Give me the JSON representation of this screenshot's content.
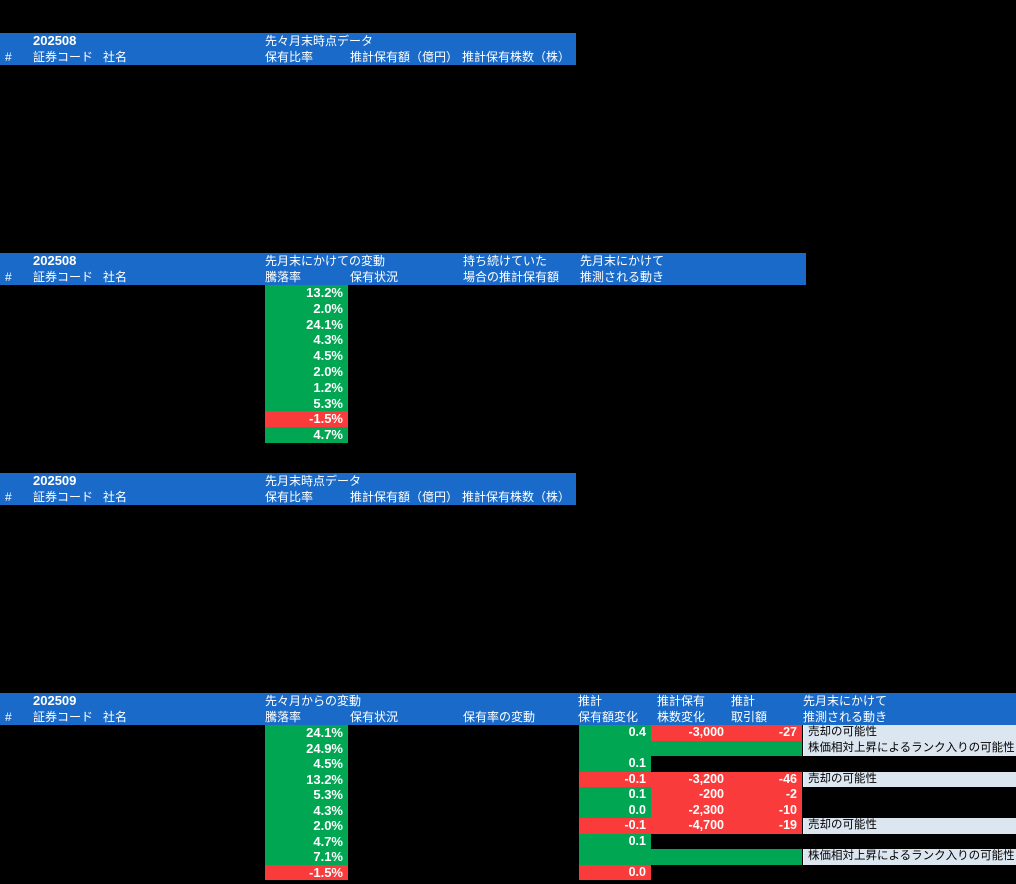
{
  "colors": {
    "blue": "#1a6bc9",
    "green": "#00a651",
    "red": "#fa3b3b",
    "note_bg": "#dce6f1"
  },
  "section1": {
    "period": "202508",
    "group_title": "先々月末時点データ",
    "col_hash": "#",
    "col_code": "証券コード",
    "col_name": "社名",
    "col_ratio": "保有比率",
    "col_amount": "推計保有額（億円）",
    "col_shares": "推計保有株数（株）"
  },
  "section2": {
    "period": "202508",
    "group_change": "先月末にかけての変動",
    "group_hold": "持ち続けていた",
    "group_move": "先月末にかけて",
    "col_hash": "#",
    "col_code": "証券コード",
    "col_name": "社名",
    "col_change": "騰落率",
    "col_status": "保有状況",
    "col_hold_amount": "場合の推計保有額",
    "col_move": "推測される動き",
    "rows": [
      {
        "change": "13.2%",
        "dir": "up"
      },
      {
        "change": "2.0%",
        "dir": "up"
      },
      {
        "change": "24.1%",
        "dir": "up"
      },
      {
        "change": "4.3%",
        "dir": "up"
      },
      {
        "change": "4.5%",
        "dir": "up"
      },
      {
        "change": "2.0%",
        "dir": "up"
      },
      {
        "change": "1.2%",
        "dir": "up"
      },
      {
        "change": "5.3%",
        "dir": "up"
      },
      {
        "change": "-1.5%",
        "dir": "down"
      },
      {
        "change": "4.7%",
        "dir": "up"
      }
    ]
  },
  "section3": {
    "period": "202509",
    "group_title": "先月末時点データ",
    "col_hash": "#",
    "col_code": "証券コード",
    "col_name": "社名",
    "col_ratio": "保有比率",
    "col_amount": "推計保有額（億円）",
    "col_shares": "推計保有株数（株）"
  },
  "section4": {
    "period": "202509",
    "group_change": "先々月からの変動",
    "group_est1": "推計",
    "group_est2": "推計保有",
    "group_est3": "推計",
    "group_move": "先月末にかけて",
    "col_hash": "#",
    "col_code": "証券コード",
    "col_name": "社名",
    "col_change": "騰落率",
    "col_status": "保有状況",
    "col_ratio_change": "保有率の変動",
    "col_amount_change": "保有額変化",
    "col_shares_change": "株数変化",
    "col_trade": "取引額",
    "col_move": "推測される動き",
    "rows": [
      {
        "change": "24.1%",
        "change_dir": "up",
        "amount": "0.4",
        "amount_dir": "up",
        "shares": "-3,000",
        "shares_dir": "down",
        "trade": "-27",
        "trade_dir": "down",
        "note": "売却の可能性"
      },
      {
        "change": "24.9%",
        "change_dir": "up",
        "amount": "",
        "amount_dir": "up",
        "shares": "",
        "shares_dir": "up",
        "trade": "",
        "trade_dir": "up",
        "note": "株価相対上昇によるランク入りの可能性"
      },
      {
        "change": "4.5%",
        "change_dir": "up",
        "amount": "0.1",
        "amount_dir": "up",
        "shares": null,
        "shares_dir": null,
        "trade": null,
        "trade_dir": null,
        "note": null
      },
      {
        "change": "13.2%",
        "change_dir": "up",
        "amount": "-0.1",
        "amount_dir": "down",
        "shares": "-3,200",
        "shares_dir": "down",
        "trade": "-46",
        "trade_dir": "down",
        "note": "売却の可能性"
      },
      {
        "change": "5.3%",
        "change_dir": "up",
        "amount": "0.1",
        "amount_dir": "up",
        "shares": "-200",
        "shares_dir": "down",
        "trade": "-2",
        "trade_dir": "down",
        "note": null
      },
      {
        "change": "4.3%",
        "change_dir": "up",
        "amount": "0.0",
        "amount_dir": "up",
        "shares": "-2,300",
        "shares_dir": "down",
        "trade": "-10",
        "trade_dir": "down",
        "note": null
      },
      {
        "change": "2.0%",
        "change_dir": "up",
        "amount": "-0.1",
        "amount_dir": "down",
        "shares": "-4,700",
        "shares_dir": "down",
        "trade": "-19",
        "trade_dir": "down",
        "note": "売却の可能性"
      },
      {
        "change": "4.7%",
        "change_dir": "up",
        "amount": "0.1",
        "amount_dir": "up",
        "shares": null,
        "shares_dir": null,
        "trade": null,
        "trade_dir": null,
        "note": null
      },
      {
        "change": "7.1%",
        "change_dir": "up",
        "amount": "",
        "amount_dir": "up",
        "shares": "",
        "shares_dir": "up",
        "trade": "",
        "trade_dir": "up",
        "note": "株価相対上昇によるランク入りの可能性"
      },
      {
        "change": "-1.5%",
        "change_dir": "down",
        "amount": "0.0",
        "amount_dir": "down",
        "shares": null,
        "shares_dir": null,
        "trade": null,
        "trade_dir": null,
        "note": null
      }
    ]
  }
}
